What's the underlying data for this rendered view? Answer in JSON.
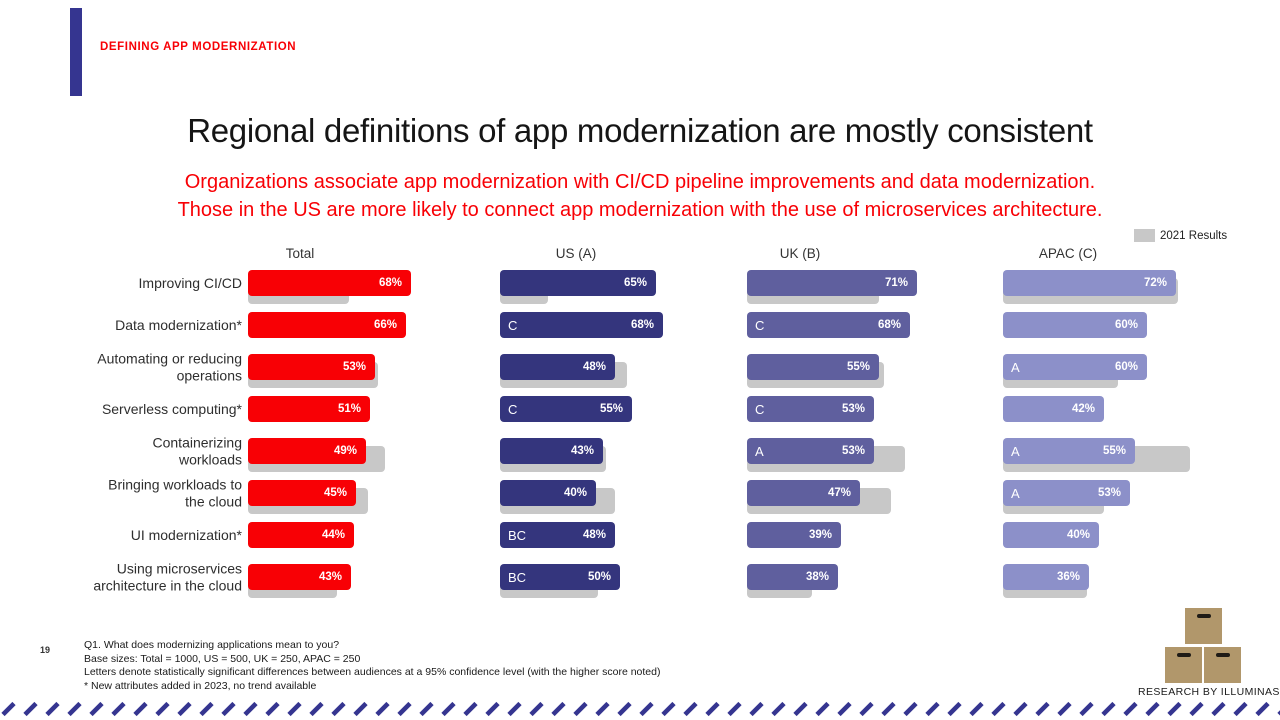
{
  "page": {
    "eyebrow": "DEFINING APP MODERNIZATION",
    "title": "Regional definitions of app modernization are mostly consistent",
    "subtitle_line1": "Organizations associate app modernization with CI/CD pipeline improvements and data modernization.",
    "subtitle_line2": "Those in the US are more likely to connect app modernization with the use of microservices architecture.",
    "page_number": "19"
  },
  "colors": {
    "accent_red": "#f80005",
    "navy": "#34357d",
    "uk_blue": "#5f5f9e",
    "apac_periwinkle": "#8c90c9",
    "prior_gray": "#c8c8c8",
    "indigo_accent": "#353590",
    "logo_tan": "#b1976b"
  },
  "legend": {
    "label": "2021 Results",
    "swatch_color": "#c8c8c8"
  },
  "chart_data": {
    "type": "bar",
    "orientation": "horizontal",
    "unit": "%",
    "xlim": [
      0,
      100
    ],
    "legend": "gray bars = 2021 Results",
    "categories": [
      "Improving CI/CD",
      "Data modernization*",
      "Automating or reducing\noperations",
      "Serverless computing*",
      "Containerizing\nworkloads",
      "Bringing workloads to\nthe cloud",
      "UI modernization*",
      "Using microservices\narchitecture in the cloud"
    ],
    "series": [
      {
        "name": "Total",
        "color": "#f80005",
        "values": [
          68,
          66,
          53,
          51,
          49,
          45,
          44,
          43
        ],
        "letters": [
          "",
          "",
          "",
          "",
          "",
          "",
          "",
          ""
        ],
        "prior_2021": [
          42,
          null,
          54,
          null,
          57,
          50,
          null,
          37
        ]
      },
      {
        "name": "US (A)",
        "color": "#34357d",
        "values": [
          65,
          68,
          48,
          55,
          43,
          40,
          48,
          50
        ],
        "letters": [
          "",
          "C",
          "",
          "C",
          "",
          "",
          "BC",
          "BC"
        ],
        "prior_2021": [
          20,
          null,
          53,
          null,
          44,
          48,
          null,
          41
        ]
      },
      {
        "name": "UK (B)",
        "color": "#5f5f9e",
        "values": [
          71,
          68,
          55,
          53,
          53,
          47,
          39,
          38
        ],
        "letters": [
          "",
          "C",
          "",
          "C",
          "A",
          "",
          "",
          ""
        ],
        "prior_2021": [
          55,
          null,
          57,
          null,
          66,
          60,
          null,
          27
        ]
      },
      {
        "name": "APAC (C)",
        "color": "#8c90c9",
        "values": [
          72,
          60,
          60,
          42,
          55,
          53,
          40,
          36
        ],
        "letters": [
          "",
          "",
          "A",
          "",
          "A",
          "A",
          "",
          ""
        ],
        "prior_2021": [
          73,
          null,
          48,
          null,
          78,
          42,
          null,
          35
        ]
      }
    ]
  },
  "footer": {
    "lines": [
      "Q1. What does modernizing applications mean to you?",
      "Base sizes: Total = 1000, US = 500, UK = 250, APAC = 250",
      "Letters denote statistically significant differences between audiences at a 95% confidence level (with the higher score noted)",
      "* New attributes added in 2023, no trend available"
    ],
    "brand": "RESEARCH BY ILLUMINAS"
  }
}
